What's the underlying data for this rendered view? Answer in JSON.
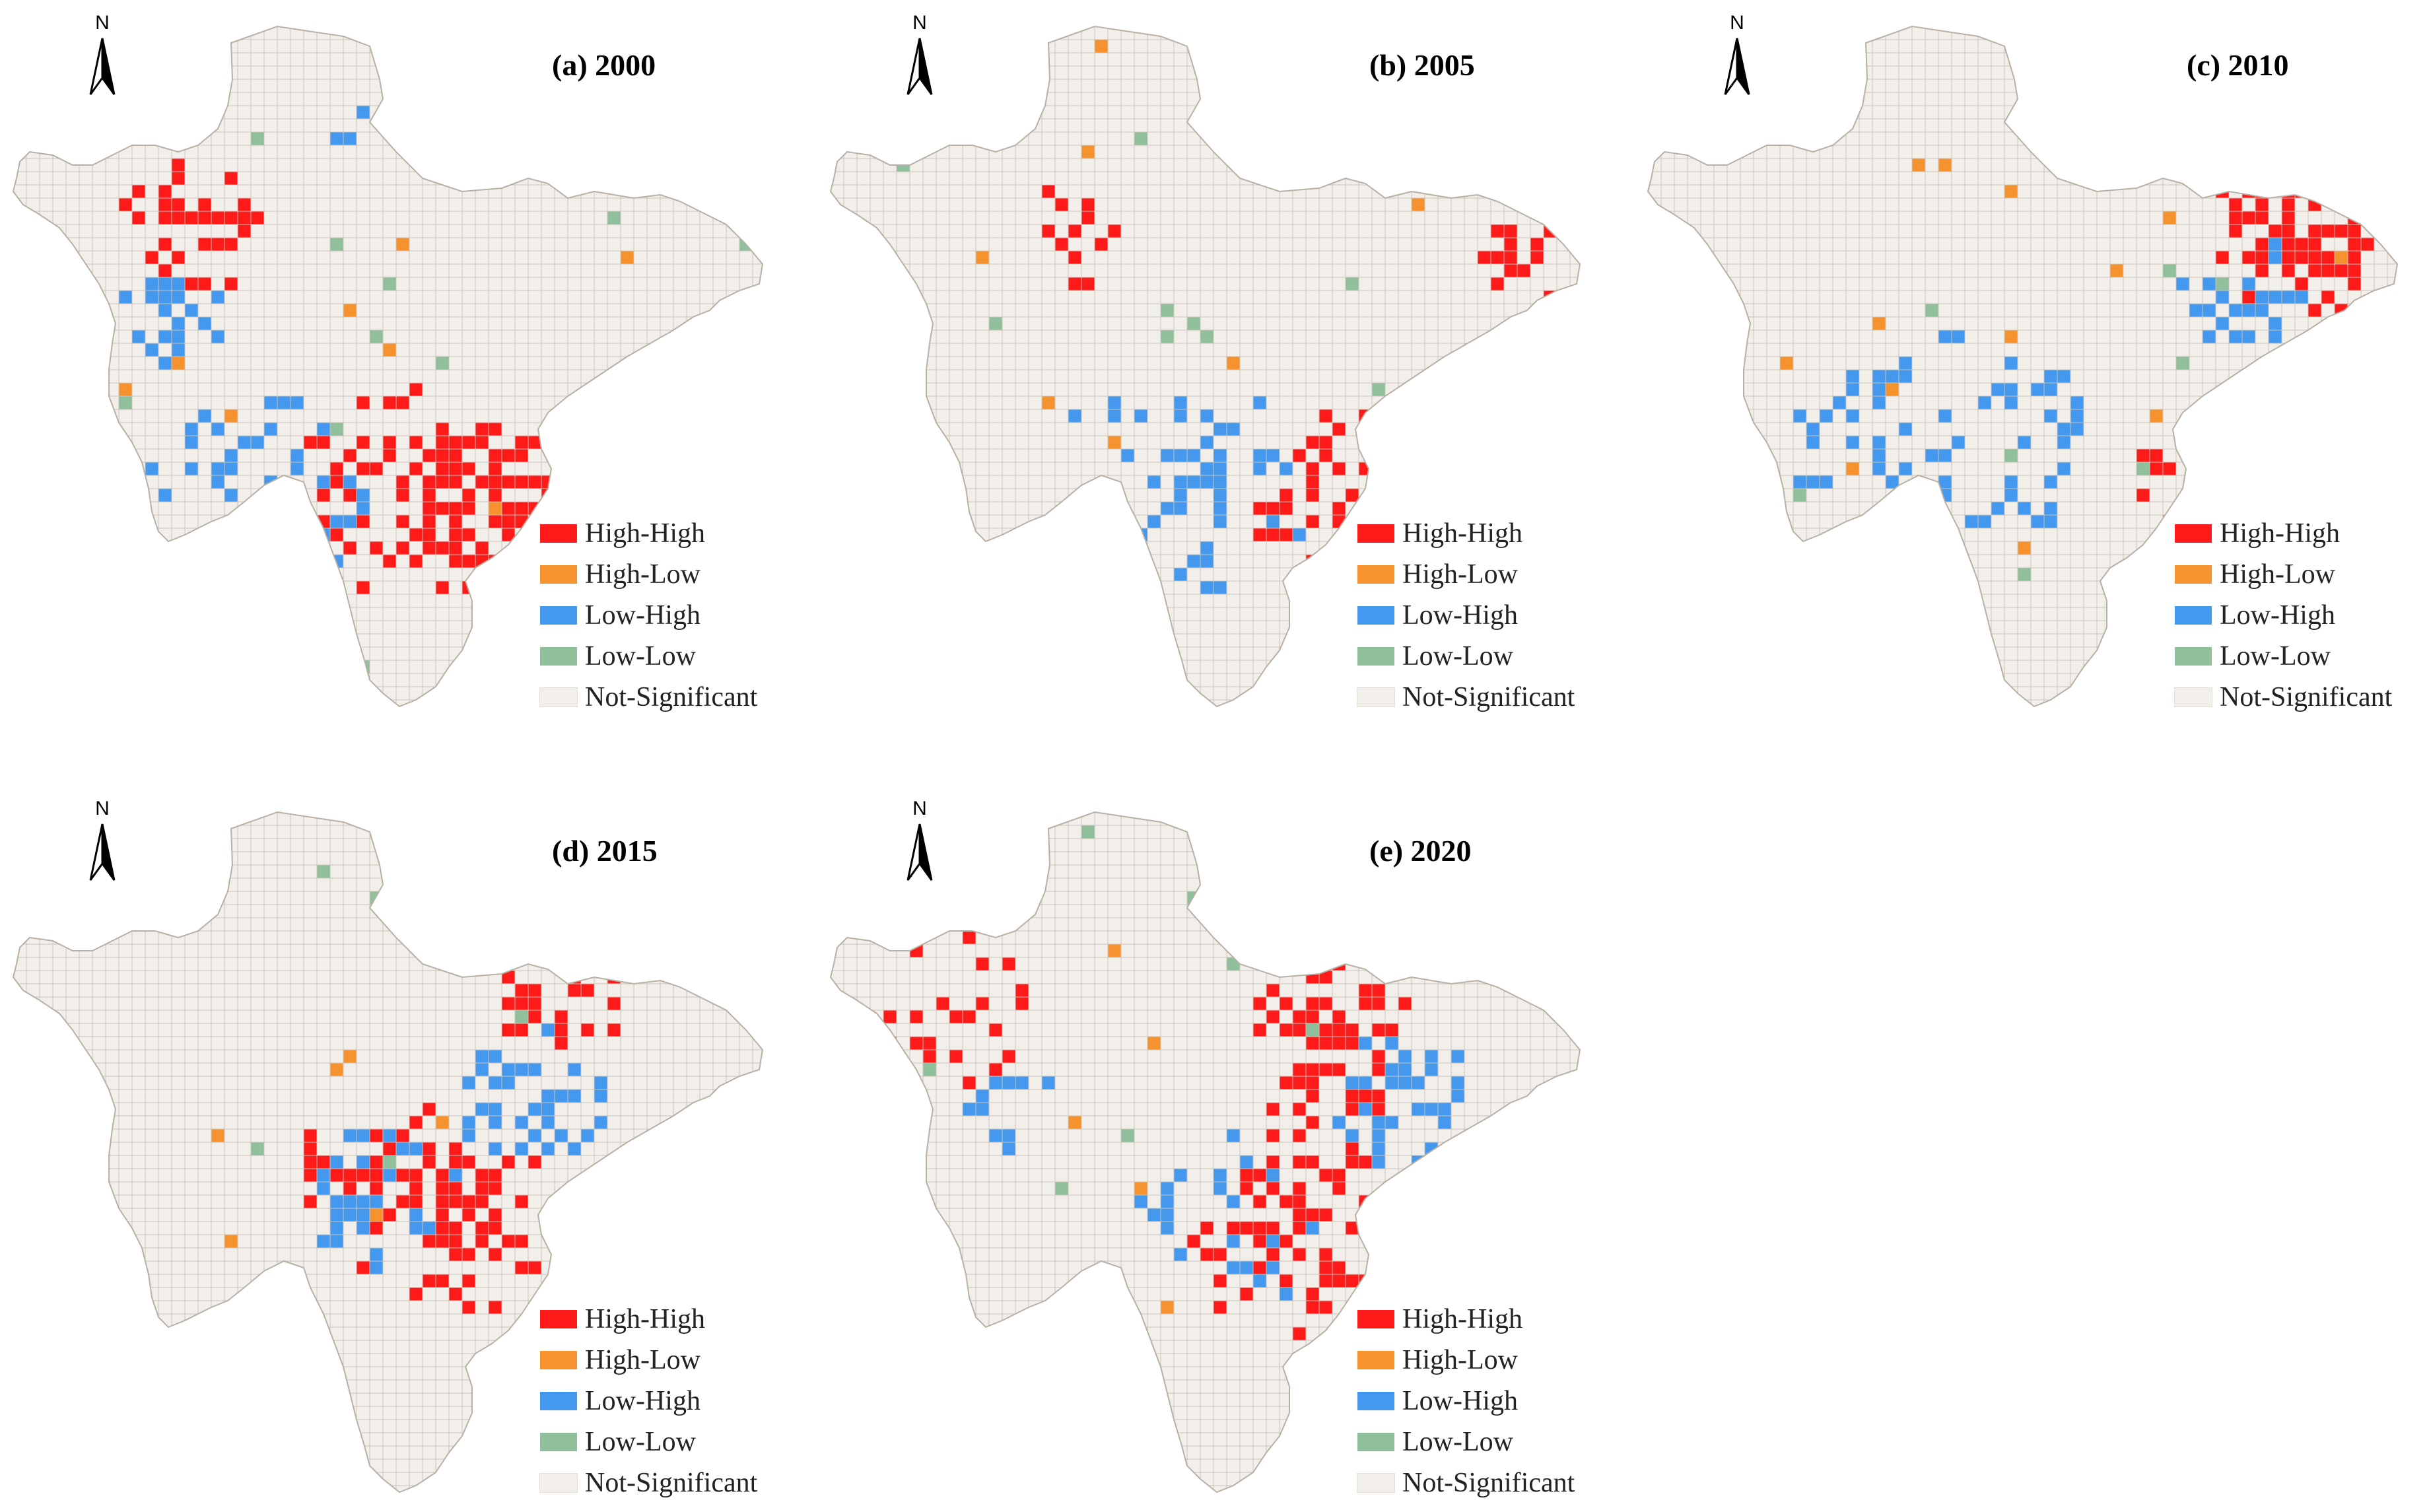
{
  "colors": {
    "high_high": "#ff1a1a",
    "high_low": "#f7932f",
    "low_high": "#4499ee",
    "low_low": "#8fc09b",
    "not_significant": "#f2efea",
    "grid_line": "#c9c3ba"
  },
  "north_arrow": {
    "label": "N",
    "icon": "north-arrow-icon"
  },
  "legend_items": [
    {
      "key": "high_high",
      "label": "High-High"
    },
    {
      "key": "high_low",
      "label": "High-Low"
    },
    {
      "key": "low_high",
      "label": "Low-High"
    },
    {
      "key": "low_low",
      "label": "Low-Low"
    },
    {
      "key": "not_significant",
      "label": "Not-Significant"
    }
  ],
  "panels": [
    {
      "title": "(a) 2000"
    },
    {
      "title": "(b) 2005"
    },
    {
      "title": "(c) 2010"
    },
    {
      "title": "(d) 2015"
    },
    {
      "title": "(e) 2020"
    }
  ]
}
